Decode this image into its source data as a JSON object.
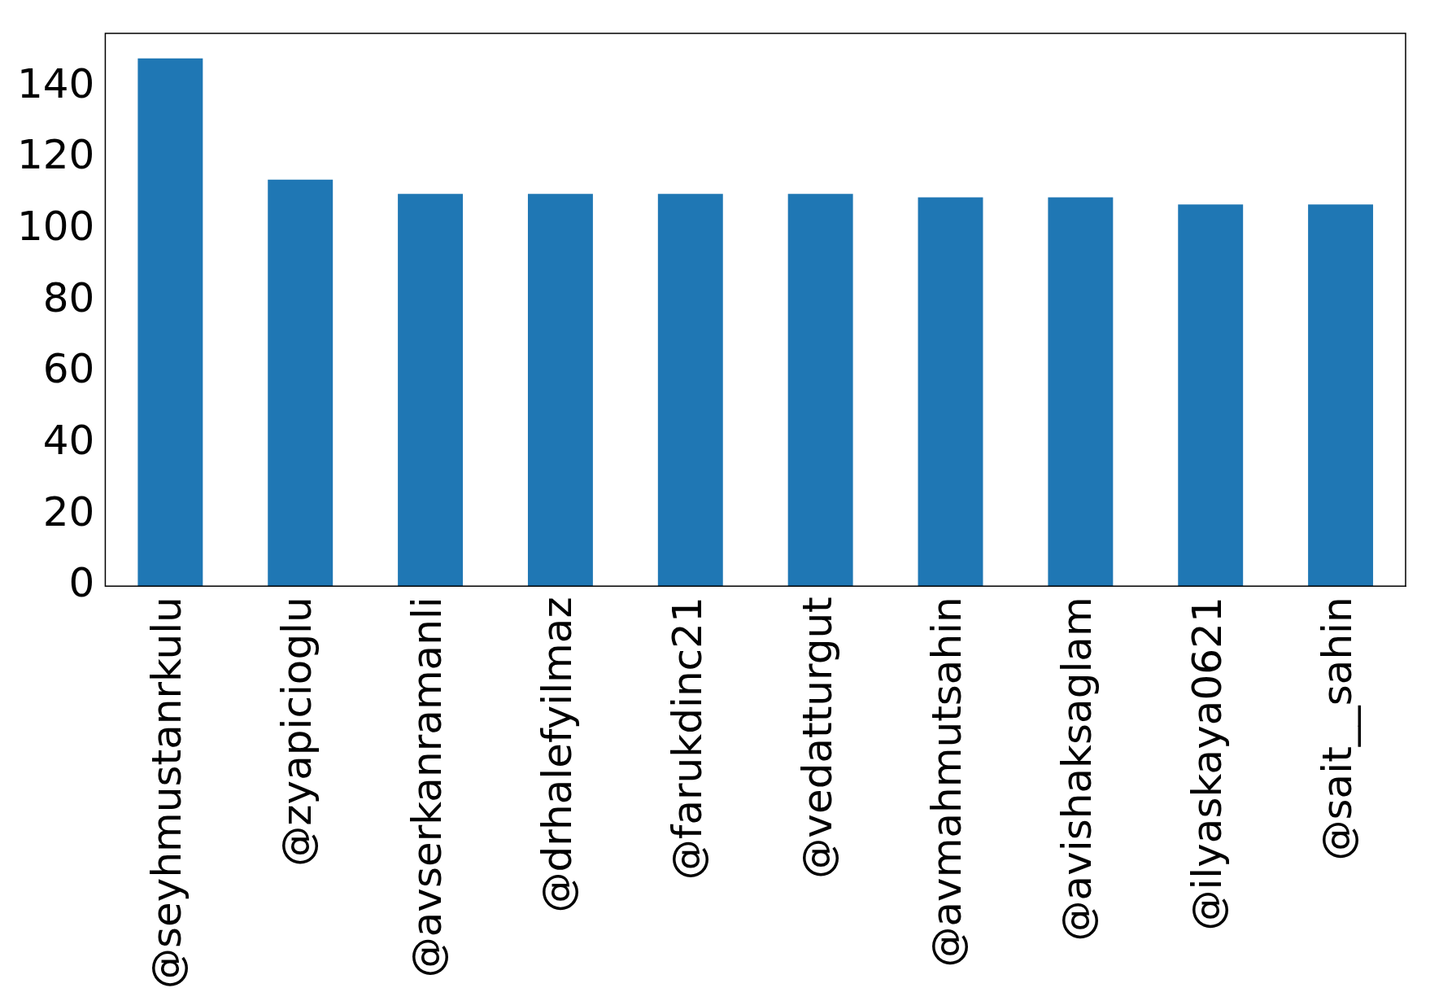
{
  "chart_data": {
    "type": "bar",
    "categories": [
      "@seyhmustanrkulu",
      "@zyapicioglu",
      "@avserkanramanli",
      "@drhalefyilmaz",
      "@farukdinc21",
      "@vedatturgut",
      "@avmahmutsahin",
      "@avishaksaglam",
      "@ilyaskaya0621",
      "@sait__sahin"
    ],
    "values": [
      148,
      114,
      110,
      110,
      110,
      110,
      109,
      109,
      107,
      107
    ],
    "color": "#1f77b4",
    "ylim": [
      0,
      155
    ],
    "yticks": [
      0,
      20,
      40,
      60,
      80,
      100,
      120,
      140
    ],
    "grid": false,
    "legend": false
  }
}
